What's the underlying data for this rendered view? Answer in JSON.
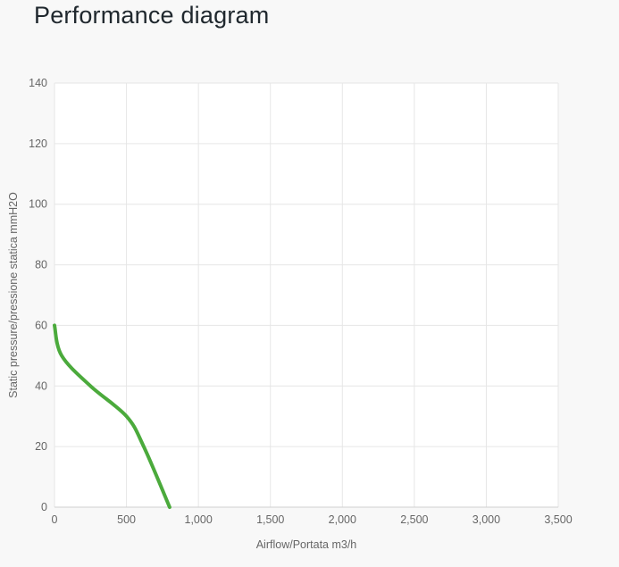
{
  "page": {
    "title": "Performance diagram"
  },
  "chart_data": {
    "type": "line",
    "title": "Performance diagram",
    "xlabel": "Airflow/Portata m3/h",
    "ylabel": "Static pressure/pressione statica mmH2O",
    "xlim": [
      0,
      3500
    ],
    "ylim": [
      0,
      140
    ],
    "x_tick_values": [
      0,
      500,
      1000,
      1500,
      2000,
      2500,
      3000,
      3500
    ],
    "x_tick_labels": [
      "0",
      "500",
      "1,000",
      "1,500",
      "2,000",
      "2,500",
      "3,000",
      "3,500"
    ],
    "y_tick_values": [
      0,
      20,
      40,
      60,
      80,
      100,
      120,
      140
    ],
    "y_tick_labels": [
      "0",
      "20",
      "40",
      "60",
      "80",
      "100",
      "120",
      "140"
    ],
    "grid": true,
    "legend": false,
    "series": [
      {
        "name": "performance-curve",
        "color": "#4BAA3C",
        "points": [
          [
            0,
            60
          ],
          [
            50,
            50
          ],
          [
            250,
            40
          ],
          [
            500,
            30
          ],
          [
            620,
            20
          ],
          [
            800,
            0
          ]
        ]
      }
    ],
    "colors": {
      "page_background": "#f8f8f8",
      "plot_background": "#ffffff",
      "gridline": "#e6e6e6",
      "axis_line": "#cfcfcf",
      "tick_label": "#666666",
      "axis_title": "#666666",
      "chart_title": "#20282e",
      "series_green": "#4BAA3C"
    }
  }
}
